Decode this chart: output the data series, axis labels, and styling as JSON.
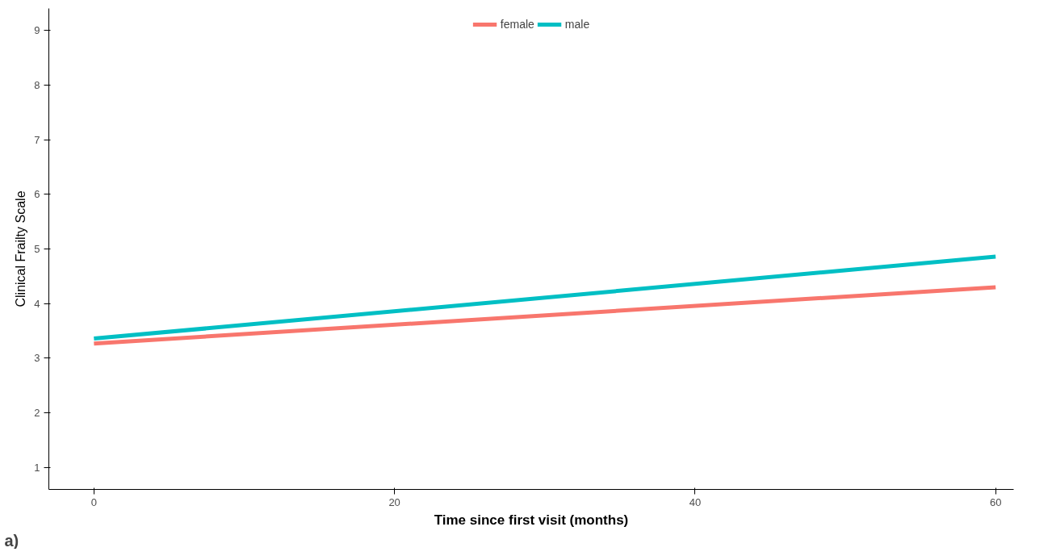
{
  "chart_data": {
    "type": "line",
    "xlabel": "Time since first visit (months)",
    "ylabel": "Clinical Frailty Scale",
    "x": [
      0,
      60
    ],
    "series": [
      {
        "name": "female",
        "color": "#f8766d",
        "values": [
          3.27,
          4.3
        ]
      },
      {
        "name": "male",
        "color": "#00bfc4",
        "values": [
          3.36,
          4.86
        ]
      }
    ],
    "xlim": [
      -3,
      61.2
    ],
    "xticks": [
      0,
      20,
      40,
      60
    ],
    "ylim": [
      0.6,
      9.4
    ],
    "yticks": [
      1,
      2,
      3,
      4,
      5,
      6,
      7,
      8,
      9
    ],
    "grid": false,
    "legend": "top",
    "line_style": "solid",
    "marker": "none",
    "annotations": [
      "a)"
    ]
  }
}
